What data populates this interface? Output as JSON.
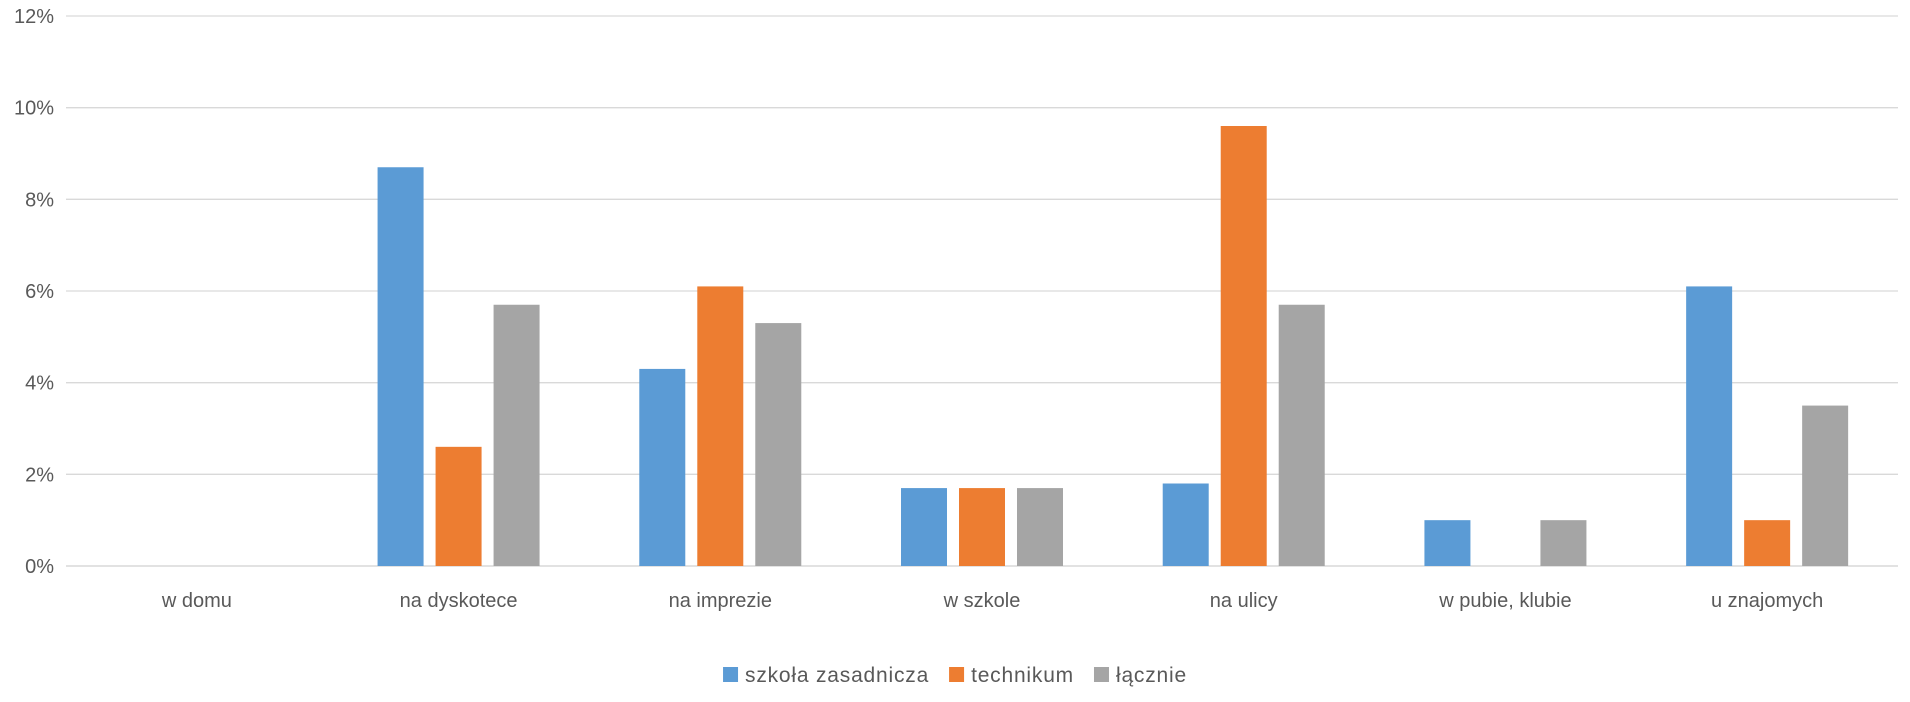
{
  "chart_data": {
    "type": "bar",
    "categories": [
      "w domu",
      "na dyskotece",
      "na imprezie",
      "w szkole",
      "na ulicy",
      "w pubie, klubie",
      "u znajomych"
    ],
    "series": [
      {
        "name": "szkoła zasadnicza",
        "color": "#5B9BD5",
        "values": [
          0,
          8.7,
          4.3,
          1.7,
          1.8,
          1.0,
          6.1
        ]
      },
      {
        "name": "technikum",
        "color": "#ED7D31",
        "values": [
          0,
          2.6,
          6.1,
          1.7,
          9.6,
          0,
          1.0
        ]
      },
      {
        "name": "łącznie",
        "color": "#A5A5A5",
        "values": [
          0,
          5.7,
          5.3,
          1.7,
          5.7,
          1.0,
          3.5
        ]
      }
    ],
    "yticks": [
      "0%",
      "2%",
      "4%",
      "6%",
      "8%",
      "10%",
      "12%"
    ],
    "ylim": [
      0,
      12
    ],
    "grid": true,
    "legend_position": "bottom"
  }
}
